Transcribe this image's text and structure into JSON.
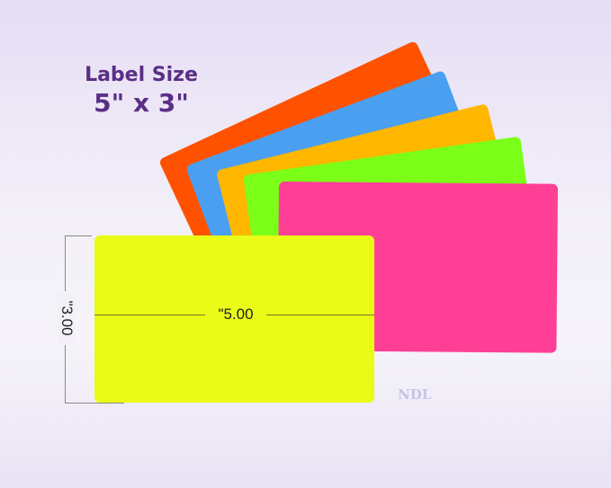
{
  "heading": {
    "line1": "Label Size",
    "line2": "5\" x 3\""
  },
  "dimensions": {
    "width_label": "\"5.00",
    "height_label": "\"3.00"
  },
  "watermark": "NDL",
  "colors": {
    "orange": "#ff5200",
    "blue": "#4a9ff0",
    "amber": "#ffb700",
    "green": "#7cff18",
    "pink": "#ff3f95",
    "yellow": "#e9fb17",
    "title": "#5b2e86"
  }
}
